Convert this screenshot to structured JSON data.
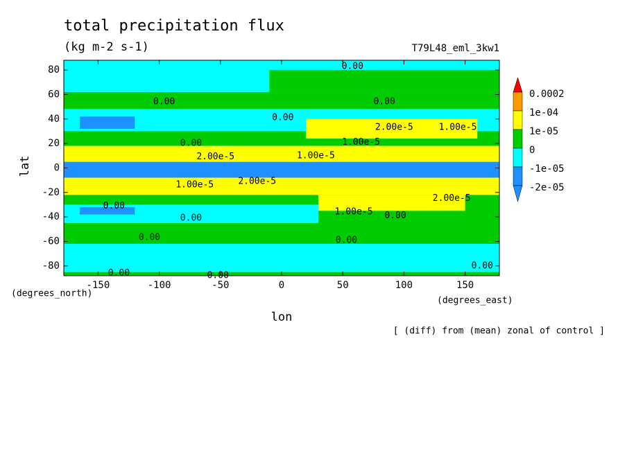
{
  "chart_data": {
    "type": "contour",
    "title": "total precipitation flux",
    "subtitle": "(kg m-2 s-1)",
    "dataset": "T79L48_eml_3kw1",
    "xlabel": "lon",
    "ylabel": "lat",
    "xunits": "(degrees_east)",
    "yunits": "(degrees_north)",
    "note": "[ (diff) from (mean) zonal of control ]",
    "xlim": [
      -178,
      178
    ],
    "ylim": [
      -88,
      88
    ],
    "xticks": [
      -150,
      -100,
      -50,
      0,
      50,
      100,
      150
    ],
    "yticks": [
      -80,
      -60,
      -40,
      -20,
      0,
      20,
      40,
      60,
      80
    ],
    "levels": [
      0.0002,
      {
        "value": 0.0001,
        "label": "1e-04"
      },
      {
        "value": 1e-05,
        "label": "1e-05"
      },
      0,
      {
        "value": -1e-05,
        "label": "-1e-05"
      },
      {
        "value": -2e-05,
        "label": "-2e-05"
      }
    ],
    "colors": [
      "#ff0000",
      "#ff9900",
      "#ffff00",
      "#00cc00",
      "#00ffff",
      "#1e90ff",
      "#1e90ff"
    ],
    "bands": [
      {
        "lat": [
          88,
          62
        ],
        "lon": [
          -178,
          178
        ],
        "color": "#00ffff"
      },
      {
        "lat": [
          80,
          62
        ],
        "lon": [
          -10,
          178
        ],
        "color": "#00cc00"
      },
      {
        "lat": [
          62,
          48
        ],
        "lon": [
          -178,
          178
        ],
        "color": "#00cc00"
      },
      {
        "lat": [
          48,
          30
        ],
        "lon": [
          -178,
          178
        ],
        "color": "#00ffff"
      },
      {
        "lat": [
          42,
          32
        ],
        "lon": [
          -165,
          -120
        ],
        "color": "#1e90ff"
      },
      {
        "lat": [
          30,
          18
        ],
        "lon": [
          -178,
          178
        ],
        "color": "#00cc00"
      },
      {
        "lat": [
          40,
          24
        ],
        "lon": [
          20,
          160
        ],
        "color": "#ffff00"
      },
      {
        "lat": [
          18,
          5
        ],
        "lon": [
          -178,
          178
        ],
        "color": "#ffff00"
      },
      {
        "lat": [
          5,
          -8
        ],
        "lon": [
          -178,
          178
        ],
        "color": "#1e90ff"
      },
      {
        "lat": [
          -8,
          -22
        ],
        "lon": [
          -178,
          178
        ],
        "color": "#ffff00"
      },
      {
        "lat": [
          -22,
          -30
        ],
        "lon": [
          -178,
          178
        ],
        "color": "#00cc00"
      },
      {
        "lat": [
          -30,
          -45
        ],
        "lon": [
          -178,
          30
        ],
        "color": "#00ffff"
      },
      {
        "lat": [
          -30,
          -45
        ],
        "lon": [
          30,
          178
        ],
        "color": "#00cc00"
      },
      {
        "lat": [
          -22,
          -35
        ],
        "lon": [
          30,
          150
        ],
        "color": "#ffff00"
      },
      {
        "lat": [
          -32,
          -38
        ],
        "lon": [
          -165,
          -120
        ],
        "color": "#1e90ff"
      },
      {
        "lat": [
          -45,
          -62
        ],
        "lon": [
          -178,
          178
        ],
        "color": "#00cc00"
      },
      {
        "lat": [
          -62,
          -85
        ],
        "lon": [
          -178,
          178
        ],
        "color": "#00ffff"
      },
      {
        "lat": [
          -85,
          -88
        ],
        "lon": [
          -178,
          178
        ],
        "color": "#00cc00"
      }
    ],
    "annotations": [
      {
        "text": "0.00",
        "lon": 58,
        "lat": 83
      },
      {
        "text": "0.00",
        "lon": -96,
        "lat": 54
      },
      {
        "text": "0.00",
        "lon": 1,
        "lat": 41
      },
      {
        "text": "0.00",
        "lon": 84,
        "lat": 54
      },
      {
        "text": "2.00e-5",
        "lon": 92,
        "lat": 33
      },
      {
        "text": "1.00e-5",
        "lon": 144,
        "lat": 33
      },
      {
        "text": "1.00e-5",
        "lon": 65,
        "lat": 21
      },
      {
        "text": "0.00",
        "lon": -74,
        "lat": 20
      },
      {
        "text": "2.00e-5",
        "lon": -54,
        "lat": 9
      },
      {
        "text": "1.00e-5",
        "lon": 28,
        "lat": 10
      },
      {
        "text": "1.00e-5",
        "lon": -71,
        "lat": -14
      },
      {
        "text": "2.00e-5",
        "lon": -20,
        "lat": -11
      },
      {
        "text": "2.00e-5",
        "lon": 139,
        "lat": -25
      },
      {
        "text": "0.00",
        "lon": -137,
        "lat": -31
      },
      {
        "text": "1.00e-5",
        "lon": 59,
        "lat": -36
      },
      {
        "text": "0.00",
        "lon": 93,
        "lat": -39
      },
      {
        "text": "0.00",
        "lon": -74,
        "lat": -41
      },
      {
        "text": "0.00",
        "lon": -108,
        "lat": -57
      },
      {
        "text": "0.00",
        "lon": 53,
        "lat": -59
      },
      {
        "text": "0.00",
        "lon": 164,
        "lat": -80
      },
      {
        "text": "0.00",
        "lon": -133,
        "lat": -86
      },
      {
        "text": "0.00",
        "lon": -52,
        "lat": -88
      }
    ]
  }
}
